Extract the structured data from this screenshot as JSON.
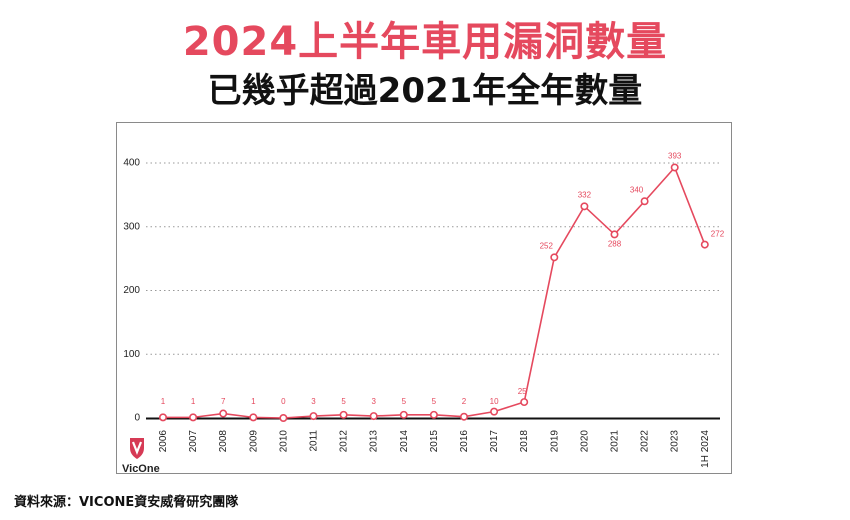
{
  "header": {
    "title": "2024上半年車用漏洞數量",
    "subtitle": "已幾乎超過2021年全年數量"
  },
  "footer": {
    "source": "資料來源：VICONE資安威脅研究團隊"
  },
  "logo": {
    "text": "VicOne"
  },
  "colors": {
    "accent": "#e5495e",
    "axis": "#111111",
    "grid": "#999999"
  },
  "chart_data": {
    "type": "line",
    "categories": [
      "2006",
      "2007",
      "2008",
      "2009",
      "2010",
      "2011",
      "2012",
      "2013",
      "2014",
      "2015",
      "2016",
      "2017",
      "2018",
      "2019",
      "2020",
      "2021",
      "2022",
      "2023",
      "1H 2024"
    ],
    "values": [
      1,
      1,
      7,
      1,
      0,
      3,
      5,
      3,
      5,
      5,
      2,
      10,
      25,
      252,
      332,
      288,
      340,
      393,
      272
    ],
    "ylim": [
      0,
      400
    ],
    "yticks": [
      0,
      100,
      200,
      300,
      400
    ],
    "grid": "horizontal dotted",
    "data_labels": true
  }
}
